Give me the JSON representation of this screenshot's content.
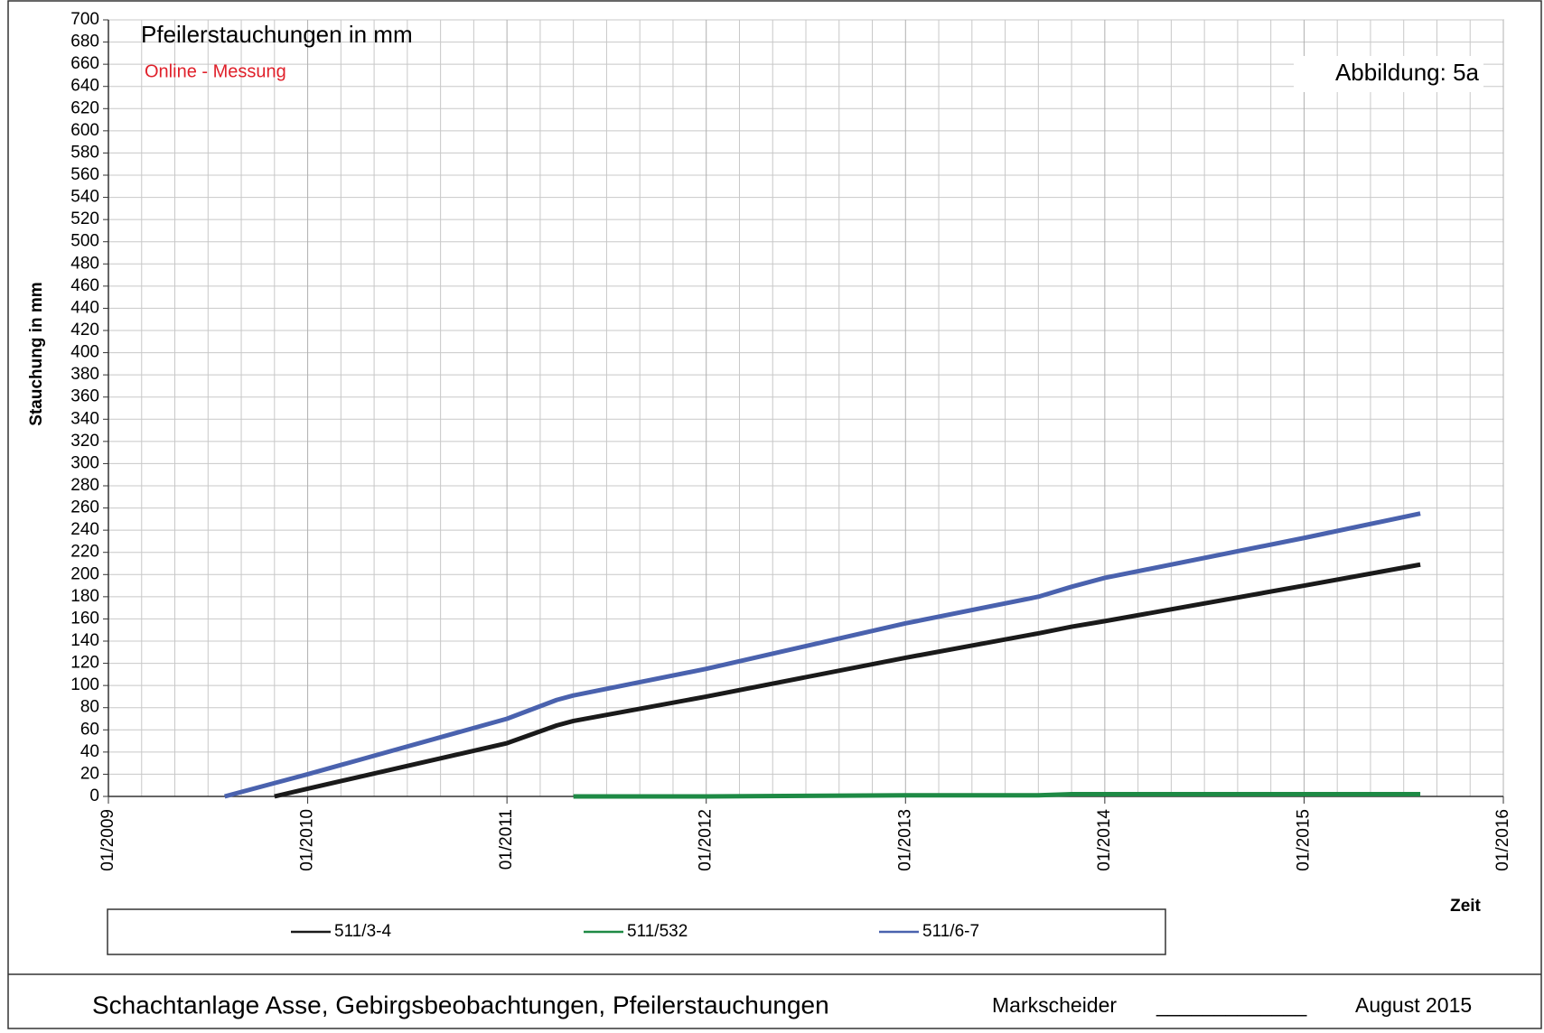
{
  "chart_data": {
    "type": "line",
    "title": "Pfeilerstauchungen in mm",
    "subtitle": "Online - Messung",
    "annotation": "Abbildung:  5a",
    "y_label": "Stauchung in mm",
    "x_label": "Zeit",
    "x": [
      "08/2009",
      "11/2009",
      "01/2010",
      "01/2011",
      "04/2011",
      "05/2011",
      "01/2012",
      "01/2013",
      "09/2013",
      "11/2013",
      "01/2014",
      "01/2015",
      "08/2015"
    ],
    "series": [
      {
        "name": "511/3-4",
        "color": "#1a1a1a",
        "values": [
          null,
          0,
          7,
          48,
          64,
          68,
          90,
          125,
          147,
          153,
          158,
          190,
          209
        ]
      },
      {
        "name": "511/532",
        "color": "#1e8a45",
        "values": [
          null,
          null,
          null,
          null,
          null,
          0,
          0,
          1,
          1,
          2,
          2,
          2,
          2
        ]
      },
      {
        "name": "511/6-7",
        "color": "#4a62ae",
        "values": [
          0,
          12,
          20,
          70,
          87,
          91,
          115,
          156,
          180,
          189,
          197,
          233,
          255
        ]
      }
    ],
    "xlim": [
      "01/2009",
      "01/2016"
    ],
    "xticks": [
      "01/2009",
      "01/2010",
      "01/2011",
      "01/2012",
      "01/2013",
      "01/2014",
      "01/2015",
      "01/2016"
    ],
    "ylim": [
      0,
      700
    ],
    "yticks": [
      0,
      20,
      40,
      60,
      80,
      100,
      120,
      140,
      160,
      180,
      200,
      220,
      240,
      260,
      280,
      300,
      320,
      340,
      360,
      380,
      400,
      420,
      440,
      460,
      480,
      500,
      520,
      540,
      560,
      580,
      600,
      620,
      640,
      660,
      680,
      700
    ],
    "grid": true
  },
  "footer": {
    "text": "Schachtanlage Asse, Gebirgsbeobachtungen, Pfeilerstauchungen",
    "role": "Markscheider",
    "signature": "_____________",
    "date": "August 2015"
  }
}
